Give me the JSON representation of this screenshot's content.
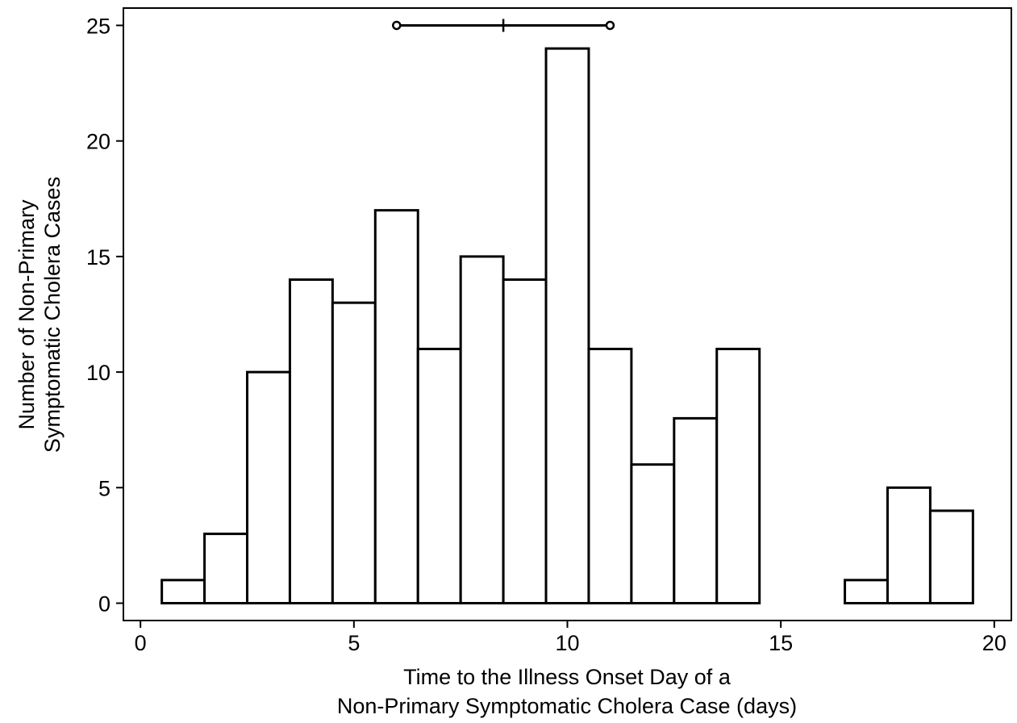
{
  "chart_data": {
    "type": "bar",
    "title": "",
    "xlabel_lines": [
      "Time to the Illness Onset Day of a",
      "Non-Primary Symptomatic Cholera Case (days)"
    ],
    "ylabel_lines": [
      "Number of Non-Primary",
      "Symptomatic Cholera Cases"
    ],
    "xlim": [
      -0.4,
      20.4
    ],
    "ylim": [
      -0.75,
      25.75
    ],
    "xticks": [
      0,
      5,
      10,
      15,
      20
    ],
    "yticks": [
      0,
      5,
      10,
      15,
      20,
      25
    ],
    "bin_width": 1,
    "bins": [
      {
        "x": 1,
        "value": 1
      },
      {
        "x": 2,
        "value": 3
      },
      {
        "x": 3,
        "value": 10
      },
      {
        "x": 4,
        "value": 14
      },
      {
        "x": 5,
        "value": 13
      },
      {
        "x": 6,
        "value": 17
      },
      {
        "x": 7,
        "value": 11
      },
      {
        "x": 8,
        "value": 15
      },
      {
        "x": 9,
        "value": 14
      },
      {
        "x": 10,
        "value": 24
      },
      {
        "x": 11,
        "value": 11
      },
      {
        "x": 12,
        "value": 6
      },
      {
        "x": 13,
        "value": 8
      },
      {
        "x": 14,
        "value": 11
      },
      {
        "x": 17,
        "value": 1
      },
      {
        "x": 18,
        "value": 5
      },
      {
        "x": 19,
        "value": 4
      }
    ],
    "range_marker": {
      "low": 6,
      "mid": 8.5,
      "high": 11,
      "y": 25
    },
    "grid": false,
    "legend": "none"
  }
}
